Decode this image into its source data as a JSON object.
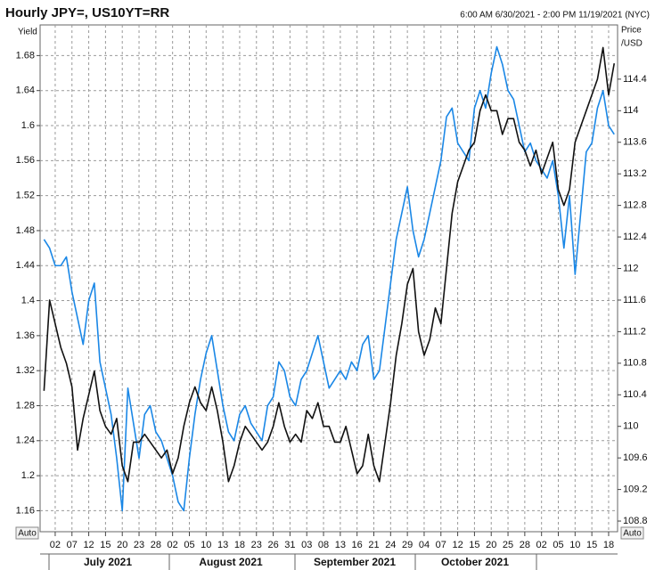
{
  "chart_data": {
    "type": "line",
    "title": "Hourly JPY=, US10YT=RR",
    "subtitle": "6:00 AM 6/30/2021 - 2:00 PM 11/19/2021 (NYC)",
    "y_label": "Yield",
    "y2_label": [
      "Price",
      "/USD"
    ],
    "button_left": "Auto",
    "button_right": "Auto",
    "months": [
      "July 2021",
      "August 2021",
      "September 2021",
      "October 2021"
    ],
    "grid": true,
    "xlim": [
      -0.7,
      102.6
    ],
    "xticks": [
      {
        "value": 2,
        "label": "02"
      },
      {
        "value": 5,
        "label": "07"
      },
      {
        "value": 8,
        "label": "12"
      },
      {
        "value": 11,
        "label": "15"
      },
      {
        "value": 14,
        "label": "20"
      },
      {
        "value": 17,
        "label": "23"
      },
      {
        "value": 20,
        "label": "28"
      },
      {
        "value": 23,
        "label": "02"
      },
      {
        "value": 26,
        "label": "05"
      },
      {
        "value": 29,
        "label": "10"
      },
      {
        "value": 32,
        "label": "13"
      },
      {
        "value": 35,
        "label": "18"
      },
      {
        "value": 38,
        "label": "23"
      },
      {
        "value": 41,
        "label": "26"
      },
      {
        "value": 44,
        "label": "31"
      },
      {
        "value": 47,
        "label": "03"
      },
      {
        "value": 50,
        "label": "08"
      },
      {
        "value": 53,
        "label": "13"
      },
      {
        "value": 56,
        "label": "16"
      },
      {
        "value": 59,
        "label": "21"
      },
      {
        "value": 62,
        "label": "24"
      },
      {
        "value": 65,
        "label": "29"
      },
      {
        "value": 68,
        "label": "04"
      },
      {
        "value": 71,
        "label": "07"
      },
      {
        "value": 74,
        "label": "12"
      },
      {
        "value": 77,
        "label": "15"
      },
      {
        "value": 80,
        "label": "20"
      },
      {
        "value": 83,
        "label": "25"
      },
      {
        "value": 86,
        "label": "28"
      },
      {
        "value": 89,
        "label": "02"
      },
      {
        "value": 92,
        "label": "05"
      },
      {
        "value": 95,
        "label": "10"
      },
      {
        "value": 98,
        "label": "15"
      },
      {
        "value": 101,
        "label": "18"
      }
    ],
    "ylim": [
      1.136,
      1.715
    ],
    "yticks": [
      1.16,
      1.2,
      1.24,
      1.28,
      1.32,
      1.36,
      1.4,
      1.44,
      1.48,
      1.52,
      1.56,
      1.6,
      1.64,
      1.68
    ],
    "y2lim": [
      108.665,
      115.087
    ],
    "y2ticks": [
      108.8,
      109.2,
      109.6,
      110,
      110.4,
      110.8,
      111.2,
      111.6,
      112,
      112.4,
      112.8,
      113.2,
      113.6,
      114,
      114.4
    ],
    "x": [
      0,
      1,
      2,
      3,
      4,
      5,
      6,
      7,
      8,
      9,
      10,
      11,
      12,
      13,
      14,
      15,
      16,
      17,
      18,
      19,
      20,
      21,
      22,
      23,
      24,
      25,
      26,
      27,
      28,
      29,
      30,
      31,
      32,
      33,
      34,
      35,
      36,
      37,
      38,
      39,
      40,
      41,
      42,
      43,
      44,
      45,
      46,
      47,
      48,
      49,
      50,
      51,
      52,
      53,
      54,
      55,
      56,
      57,
      58,
      59,
      60,
      61,
      62,
      63,
      64,
      65,
      66,
      67,
      68,
      69,
      70,
      71,
      72,
      73,
      74,
      75,
      76,
      77,
      78,
      79,
      80,
      81,
      82,
      83,
      84,
      85,
      86,
      87,
      88,
      89,
      90,
      91,
      92,
      93,
      94,
      95,
      96,
      97,
      98,
      99,
      100,
      101,
      102
    ],
    "series": [
      {
        "name": "US10YT=RR",
        "color": "#1a87e6",
        "axis": "y",
        "values": [
          1.47,
          1.46,
          1.44,
          1.44,
          1.45,
          1.41,
          1.38,
          1.35,
          1.4,
          1.42,
          1.33,
          1.3,
          1.27,
          1.22,
          1.16,
          1.3,
          1.26,
          1.22,
          1.27,
          1.28,
          1.25,
          1.24,
          1.22,
          1.2,
          1.17,
          1.16,
          1.22,
          1.27,
          1.31,
          1.34,
          1.36,
          1.32,
          1.28,
          1.25,
          1.24,
          1.27,
          1.28,
          1.26,
          1.25,
          1.24,
          1.28,
          1.29,
          1.33,
          1.32,
          1.29,
          1.28,
          1.31,
          1.32,
          1.34,
          1.36,
          1.33,
          1.3,
          1.31,
          1.32,
          1.31,
          1.33,
          1.32,
          1.35,
          1.36,
          1.31,
          1.32,
          1.37,
          1.42,
          1.47,
          1.5,
          1.53,
          1.48,
          1.45,
          1.47,
          1.5,
          1.53,
          1.56,
          1.61,
          1.62,
          1.58,
          1.57,
          1.56,
          1.62,
          1.64,
          1.62,
          1.66,
          1.69,
          1.67,
          1.64,
          1.63,
          1.6,
          1.57,
          1.58,
          1.56,
          1.55,
          1.54,
          1.56,
          1.52,
          1.46,
          1.52,
          1.43,
          1.5,
          1.57,
          1.58,
          1.62,
          1.64,
          1.6,
          1.59
        ]
      },
      {
        "name": "JPY=",
        "color": "#111111",
        "axis": "y2",
        "values": [
          110.45,
          111.6,
          111.3,
          111,
          110.8,
          110.5,
          109.7,
          110.1,
          110.4,
          110.7,
          110.2,
          110,
          109.9,
          110.1,
          109.5,
          109.3,
          109.8,
          109.8,
          109.9,
          109.8,
          109.7,
          109.6,
          109.7,
          109.4,
          109.6,
          110,
          110.3,
          110.5,
          110.3,
          110.2,
          110.5,
          110.2,
          109.8,
          109.3,
          109.5,
          109.8,
          110,
          109.9,
          109.8,
          109.7,
          109.8,
          110,
          110.3,
          110,
          109.8,
          109.9,
          109.8,
          110.2,
          110.1,
          110.3,
          110,
          110,
          109.8,
          109.8,
          110,
          109.7,
          109.4,
          109.5,
          109.9,
          109.5,
          109.3,
          109.8,
          110.3,
          110.9,
          111.3,
          111.8,
          112,
          111.2,
          110.9,
          111.1,
          111.5,
          111.3,
          112,
          112.7,
          113.1,
          113.3,
          113.5,
          113.6,
          114,
          114.2,
          114,
          114,
          113.7,
          113.9,
          113.9,
          113.6,
          113.5,
          113.3,
          113.5,
          113.2,
          113.4,
          113.6,
          113,
          112.8,
          113,
          113.6,
          113.8,
          114,
          114.2,
          114.4,
          114.8,
          114.2,
          114.6
        ]
      }
    ]
  }
}
